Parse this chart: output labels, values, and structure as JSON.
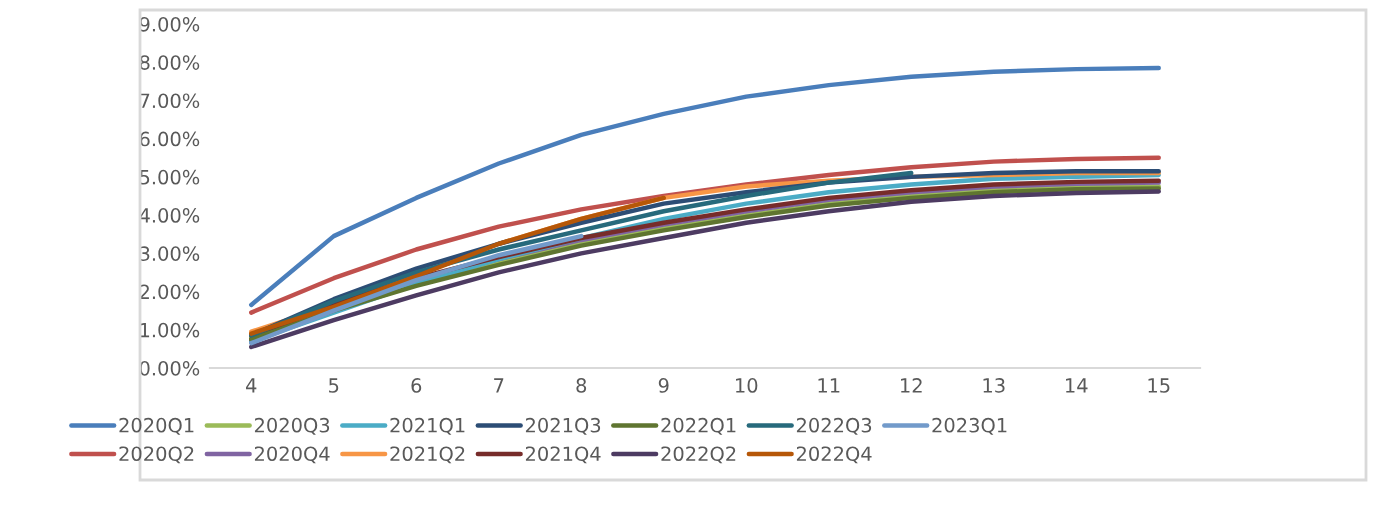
{
  "chart_data": {
    "type": "line",
    "categories": [
      "4",
      "5",
      "6",
      "7",
      "8",
      "9",
      "10",
      "11",
      "12",
      "13",
      "14",
      "15"
    ],
    "ylim": [
      0,
      9
    ],
    "yticks": [
      {
        "value": 0,
        "label": "0.00%"
      },
      {
        "value": 1,
        "label": "1.00%"
      },
      {
        "value": 2,
        "label": "2.00%"
      },
      {
        "value": 3,
        "label": "3.00%"
      },
      {
        "value": 4,
        "label": "4.00%"
      },
      {
        "value": 5,
        "label": "5.00%"
      },
      {
        "value": 6,
        "label": "6.00%"
      },
      {
        "value": 7,
        "label": "7.00%"
      },
      {
        "value": 8,
        "label": "8.00%"
      },
      {
        "value": 9,
        "label": "9.00%"
      }
    ],
    "grid": false,
    "legend": "bottom",
    "marker": "none",
    "line_style": "solid",
    "series": [
      {
        "name": "2020Q1",
        "color": "#4a7ebb",
        "values": [
          1.65,
          3.45,
          4.45,
          5.35,
          6.1,
          6.65,
          7.1,
          7.4,
          7.62,
          7.75,
          7.82,
          7.85
        ]
      },
      {
        "name": "2020Q2",
        "color": "#c0504d",
        "values": [
          1.45,
          2.35,
          3.1,
          3.7,
          4.15,
          4.5,
          4.8,
          5.05,
          5.25,
          5.4,
          5.47,
          5.5
        ]
      },
      {
        "name": "2020Q3",
        "color": "#9bbb59",
        "values": [
          0.8,
          1.6,
          2.2,
          2.75,
          3.25,
          3.65,
          4.0,
          4.3,
          4.5,
          4.65,
          4.72,
          4.75
        ]
      },
      {
        "name": "2020Q4",
        "color": "#8064a2",
        "values": [
          0.7,
          1.55,
          2.25,
          2.85,
          3.35,
          3.75,
          4.1,
          4.4,
          4.6,
          4.75,
          4.82,
          4.85
        ]
      },
      {
        "name": "2021Q1",
        "color": "#4bacc6",
        "values": [
          0.7,
          1.45,
          2.2,
          2.85,
          3.4,
          3.9,
          4.3,
          4.6,
          4.8,
          4.95,
          5.0,
          5.05
        ]
      },
      {
        "name": "2021Q2",
        "color": "#f79646",
        "values": [
          0.95,
          1.65,
          2.45,
          3.25,
          3.9,
          4.45,
          4.75,
          4.9,
          5.0,
          5.05,
          5.1,
          5.1
        ]
      },
      {
        "name": "2021Q3",
        "color": "#2c4d75",
        "values": [
          0.85,
          1.8,
          2.6,
          3.25,
          3.8,
          4.3,
          4.6,
          4.85,
          5.0,
          5.1,
          5.15,
          5.15
        ]
      },
      {
        "name": "2021Q4",
        "color": "#772c2a",
        "values": [
          0.75,
          1.7,
          2.35,
          2.9,
          3.4,
          3.8,
          4.15,
          4.45,
          4.65,
          4.8,
          4.87,
          4.9
        ]
      },
      {
        "name": "2022Q1",
        "color": "#5f7530",
        "values": [
          0.75,
          1.5,
          2.15,
          2.7,
          3.2,
          3.6,
          3.95,
          4.25,
          4.45,
          4.6,
          4.68,
          4.7
        ]
      },
      {
        "name": "2022Q2",
        "color": "#4d3b62",
        "values": [
          0.55,
          1.25,
          1.9,
          2.5,
          3.0,
          3.4,
          3.8,
          4.1,
          4.35,
          4.5,
          4.58,
          4.62
        ]
      },
      {
        "name": "2022Q3",
        "color": "#276a7c",
        "values": [
          0.85,
          1.75,
          2.5,
          3.1,
          3.6,
          4.1,
          4.5,
          4.85,
          5.1,
          null,
          null,
          null
        ]
      },
      {
        "name": "2022Q4",
        "color": "#b65708",
        "values": [
          0.9,
          1.6,
          2.4,
          3.25,
          3.9,
          4.45,
          null,
          null,
          null,
          null,
          null,
          null
        ]
      },
      {
        "name": "2023Q1",
        "color": "#729aca",
        "values": [
          0.65,
          1.5,
          2.3,
          2.95,
          3.45,
          null,
          null,
          null,
          null,
          null,
          null,
          null
        ]
      }
    ]
  }
}
